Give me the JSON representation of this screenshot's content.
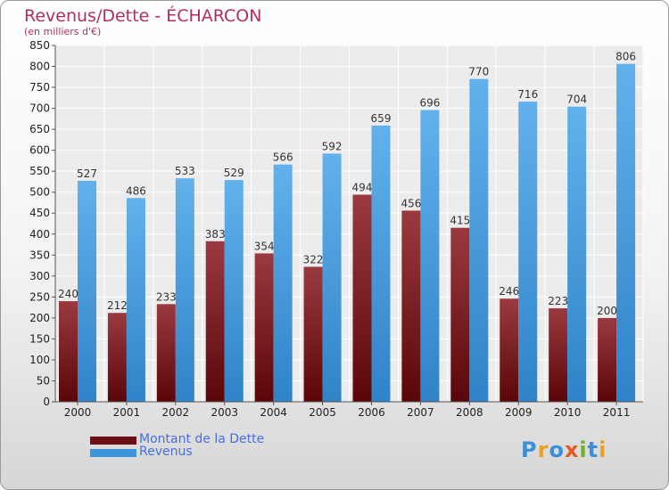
{
  "chart_data": {
    "type": "bar",
    "title": "Revenus/Dette - ÉCHARCON",
    "subtitle": "(en milliers d'€)",
    "categories": [
      "2000",
      "2001",
      "2002",
      "2003",
      "2004",
      "2005",
      "2006",
      "2007",
      "2008",
      "2009",
      "2010",
      "2011"
    ],
    "series": [
      {
        "name": "Montant de la Dette",
        "color": "#6b0f15",
        "values": [
          240,
          212,
          233,
          383,
          354,
          322,
          494,
          456,
          415,
          246,
          223,
          200
        ]
      },
      {
        "name": "Revenus",
        "color": "#3d95db",
        "values": [
          527,
          486,
          533,
          529,
          566,
          592,
          659,
          696,
          770,
          716,
          704,
          806
        ]
      }
    ],
    "ylim": [
      0,
      850
    ],
    "yticks": [
      0,
      50,
      100,
      150,
      200,
      250,
      300,
      350,
      400,
      450,
      500,
      550,
      600,
      650,
      700,
      750,
      800,
      850
    ],
    "grid": true,
    "legend": "bottom-left"
  },
  "logo": {
    "text": "Proxiti"
  }
}
